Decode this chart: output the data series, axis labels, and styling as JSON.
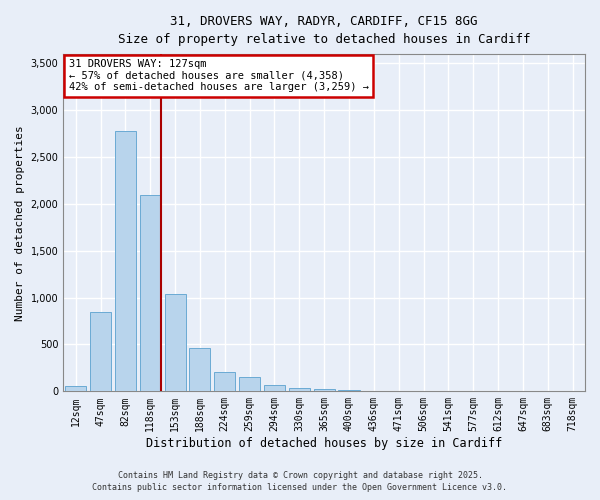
{
  "title_line1": "31, DROVERS WAY, RADYR, CARDIFF, CF15 8GG",
  "title_line2": "Size of property relative to detached houses in Cardiff",
  "xlabel": "Distribution of detached houses by size in Cardiff",
  "ylabel": "Number of detached properties",
  "categories": [
    "12sqm",
    "47sqm",
    "82sqm",
    "118sqm",
    "153sqm",
    "188sqm",
    "224sqm",
    "259sqm",
    "294sqm",
    "330sqm",
    "365sqm",
    "400sqm",
    "436sqm",
    "471sqm",
    "506sqm",
    "541sqm",
    "577sqm",
    "612sqm",
    "647sqm",
    "683sqm",
    "718sqm"
  ],
  "values": [
    55,
    850,
    2780,
    2100,
    1040,
    460,
    205,
    150,
    65,
    35,
    25,
    10,
    5,
    5,
    0,
    0,
    0,
    0,
    0,
    0,
    0
  ],
  "bar_color": "#b8d4ec",
  "bar_edge_color": "#6aaad4",
  "vline_x": 3.43,
  "vline_color": "#aa0000",
  "annotation_text": "31 DROVERS WAY: 127sqm\n← 57% of detached houses are smaller (4,358)\n42% of semi-detached houses are larger (3,259) →",
  "annotation_box_color": "#cc0000",
  "ylim": [
    0,
    3600
  ],
  "yticks": [
    0,
    500,
    1000,
    1500,
    2000,
    2500,
    3000,
    3500
  ],
  "background_color": "#e8eef8",
  "grid_color": "#ffffff",
  "footer_line1": "Contains HM Land Registry data © Crown copyright and database right 2025.",
  "footer_line2": "Contains public sector information licensed under the Open Government Licence v3.0."
}
